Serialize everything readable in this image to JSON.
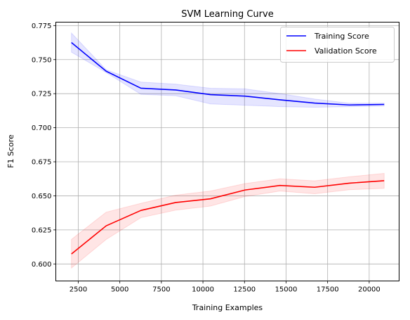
{
  "chart_data": {
    "type": "line",
    "title": "SVM Learning Curve",
    "xlabel": "Training Examples",
    "ylabel": "F1 Score",
    "xlim": [
      1150,
      21800
    ],
    "ylim": [
      0.5875,
      0.7775
    ],
    "xticks": [
      2500,
      5000,
      7500,
      10000,
      12500,
      15000,
      17500,
      20000
    ],
    "xtick_labels": [
      "2500",
      "5000",
      "7500",
      "10000",
      "12500",
      "15000",
      "17500",
      "20000"
    ],
    "yticks": [
      0.6,
      0.625,
      0.65,
      0.675,
      0.7,
      0.725,
      0.75,
      0.775
    ],
    "ytick_labels": [
      "0.600",
      "0.625",
      "0.650",
      "0.675",
      "0.700",
      "0.725",
      "0.750",
      "0.775"
    ],
    "grid": true,
    "legend_position": "top-right",
    "x": [
      2090,
      4180,
      6270,
      8360,
      10450,
      12540,
      14630,
      16720,
      18810,
      20900
    ],
    "series": [
      {
        "name": "Training Score",
        "color": "#0000ff",
        "values": [
          0.7625,
          0.7415,
          0.729,
          0.7277,
          0.7243,
          0.7232,
          0.7205,
          0.7181,
          0.7167,
          0.7171
        ],
        "lower": [
          0.7555,
          0.7405,
          0.7245,
          0.7235,
          0.7175,
          0.7165,
          0.7155,
          0.715,
          0.7155,
          0.716
        ],
        "upper": [
          0.7695,
          0.7425,
          0.7335,
          0.732,
          0.729,
          0.7285,
          0.725,
          0.721,
          0.718,
          0.718
        ]
      },
      {
        "name": "Validation Score",
        "color": "#ff0000",
        "values": [
          0.6073,
          0.628,
          0.6393,
          0.6451,
          0.6478,
          0.6543,
          0.6576,
          0.6563,
          0.6593,
          0.6611
        ],
        "lower": [
          0.597,
          0.618,
          0.634,
          0.6395,
          0.6425,
          0.6495,
          0.6535,
          0.6515,
          0.6545,
          0.6555
        ],
        "upper": [
          0.618,
          0.638,
          0.6445,
          0.6505,
          0.6535,
          0.659,
          0.6625,
          0.661,
          0.664,
          0.6665
        ]
      }
    ]
  }
}
